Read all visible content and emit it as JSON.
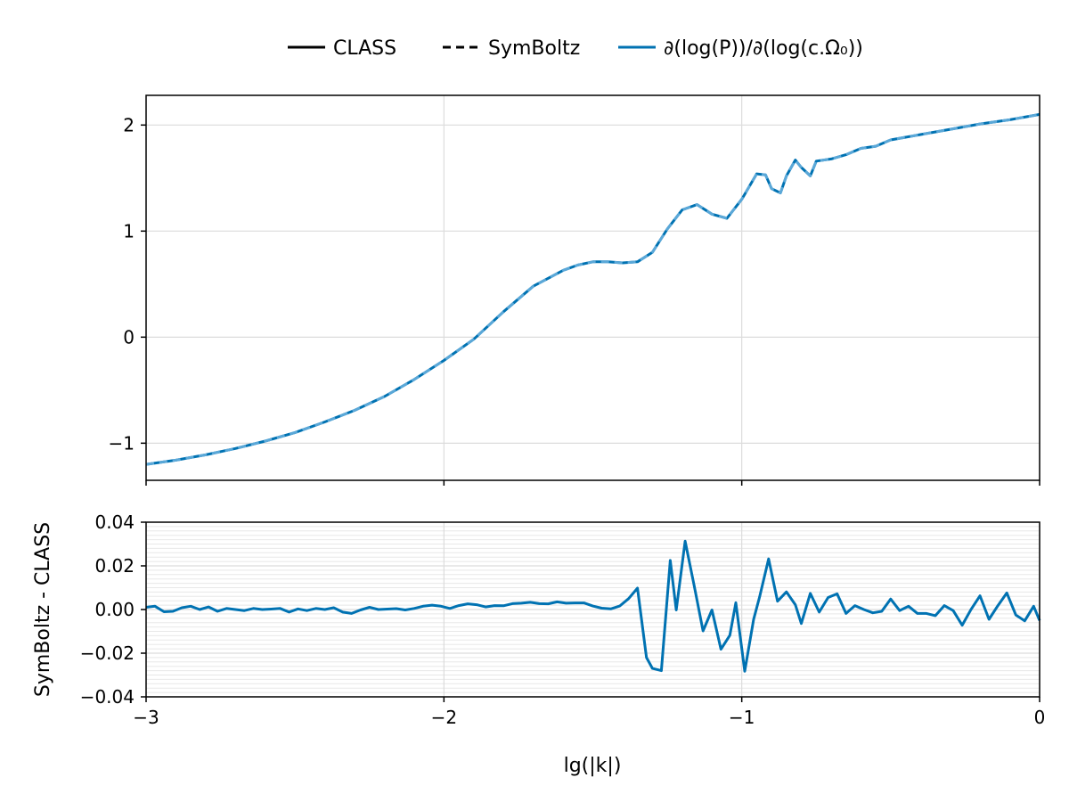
{
  "legend": {
    "items": [
      {
        "label": "CLASS",
        "style": "solid",
        "color": "#000000"
      },
      {
        "label": "SymBoltz",
        "style": "dashed",
        "color": "#000000"
      },
      {
        "label": "∂(log(P))/∂(log(c.Ω₀))",
        "style": "solid",
        "color": "#0072b2"
      }
    ],
    "placement": "top-center"
  },
  "chart_data": [
    {
      "type": "line",
      "xlabel": "",
      "ylabel": "",
      "xlim": [
        -3,
        0
      ],
      "ylim": [
        -1.35,
        2.28
      ],
      "xticks": [
        -3,
        -2,
        -1,
        0
      ],
      "yticks": [
        -1,
        0,
        1,
        2
      ],
      "ytick_labels": [
        "−1",
        "0",
        "1",
        "2"
      ],
      "grid": true,
      "series": [
        {
          "name": "∂(log(P))/∂(log(c.Ω₀))",
          "color": "#0072b2",
          "style": "solid + dashed overlay",
          "x": [
            -3.0,
            -2.9,
            -2.8,
            -2.7,
            -2.6,
            -2.5,
            -2.4,
            -2.3,
            -2.2,
            -2.1,
            -2.0,
            -1.9,
            -1.8,
            -1.7,
            -1.6,
            -1.55,
            -1.5,
            -1.45,
            -1.4,
            -1.35,
            -1.3,
            -1.25,
            -1.2,
            -1.15,
            -1.1,
            -1.05,
            -1.0,
            -0.95,
            -0.92,
            -0.9,
            -0.87,
            -0.85,
            -0.82,
            -0.8,
            -0.77,
            -0.75,
            -0.7,
            -0.65,
            -0.6,
            -0.55,
            -0.5,
            -0.4,
            -0.3,
            -0.2,
            -0.1,
            0.0
          ],
          "y": [
            -1.2,
            -1.16,
            -1.11,
            -1.05,
            -0.98,
            -0.9,
            -0.8,
            -0.69,
            -0.56,
            -0.4,
            -0.22,
            -0.02,
            0.24,
            0.48,
            0.63,
            0.68,
            0.71,
            0.71,
            0.7,
            0.71,
            0.8,
            1.02,
            1.2,
            1.25,
            1.16,
            1.12,
            1.3,
            1.54,
            1.53,
            1.4,
            1.36,
            1.52,
            1.67,
            1.6,
            1.52,
            1.66,
            1.68,
            1.72,
            1.78,
            1.8,
            1.86,
            1.91,
            1.96,
            2.01,
            2.05,
            2.1
          ]
        }
      ]
    },
    {
      "type": "line",
      "xlabel": "lg(|k|)",
      "ylabel": "SymBoltz - CLASS",
      "xlim": [
        -3,
        0
      ],
      "ylim": [
        -0.04,
        0.04
      ],
      "xticks": [
        -3,
        -2,
        -1,
        0
      ],
      "xtick_labels": [
        "−3",
        "−2",
        "−1",
        "0"
      ],
      "yticks": [
        -0.04,
        -0.02,
        0.0,
        0.02,
        0.04
      ],
      "ytick_labels": [
        "−0.04",
        "−0.02",
        "0.00",
        "0.02",
        "0.04"
      ],
      "grid": true,
      "series": [
        {
          "name": "∂(log(P))/∂(log(c.Ω₀))",
          "color": "#0072b2",
          "x": [
            -3.0,
            -2.97,
            -2.94,
            -2.91,
            -2.88,
            -2.85,
            -2.82,
            -2.79,
            -2.76,
            -2.73,
            -2.7,
            -2.67,
            -2.64,
            -2.61,
            -2.58,
            -2.55,
            -2.52,
            -2.49,
            -2.46,
            -2.43,
            -2.4,
            -2.37,
            -2.34,
            -2.31,
            -2.28,
            -2.25,
            -2.22,
            -2.19,
            -2.16,
            -2.13,
            -2.1,
            -2.07,
            -2.04,
            -2.01,
            -1.98,
            -1.95,
            -1.92,
            -1.89,
            -1.86,
            -1.83,
            -1.8,
            -1.77,
            -1.74,
            -1.71,
            -1.68,
            -1.65,
            -1.62,
            -1.59,
            -1.56,
            -1.53,
            -1.5,
            -1.47,
            -1.44,
            -1.41,
            -1.38,
            -1.35,
            -1.32,
            -1.3,
            -1.27,
            -1.24,
            -1.22,
            -1.19,
            -1.16,
            -1.13,
            -1.1,
            -1.07,
            -1.04,
            -1.02,
            -0.99,
            -0.96,
            -0.94,
            -0.91,
            -0.88,
            -0.85,
            -0.82,
            -0.8,
            -0.77,
            -0.74,
            -0.71,
            -0.68,
            -0.65,
            -0.62,
            -0.59,
            -0.56,
            -0.53,
            -0.5,
            -0.47,
            -0.44,
            -0.41,
            -0.38,
            -0.35,
            -0.32,
            -0.29,
            -0.26,
            -0.23,
            -0.2,
            -0.17,
            -0.14,
            -0.11,
            -0.08,
            -0.05,
            -0.02,
            0.0
          ],
          "y": [
            0.001,
            0.0015,
            -0.001,
            -0.0008,
            0.0008,
            0.0015,
            0.0,
            0.0012,
            -0.0008,
            0.0005,
            0.0,
            -0.0005,
            0.0005,
            0.0,
            0.0002,
            0.0005,
            -0.0012,
            0.0003,
            -0.0005,
            0.0005,
            0.0,
            0.0008,
            -0.0012,
            -0.0018,
            -0.0002,
            0.001,
            0.0,
            0.0002,
            0.0004,
            -0.0002,
            0.0005,
            0.0015,
            0.002,
            0.0015,
            0.0005,
            0.0018,
            0.0026,
            0.0022,
            0.0012,
            0.0018,
            0.0017,
            0.0027,
            0.0029,
            0.0033,
            0.0027,
            0.0026,
            0.0035,
            0.0029,
            0.003,
            0.003,
            0.0016,
            0.0006,
            0.0003,
            0.0016,
            0.005,
            0.0098,
            -0.022,
            -0.027,
            -0.028,
            0.0225,
            -0.0002,
            0.0313,
            0.011,
            -0.0098,
            -0.0002,
            -0.0182,
            -0.0118,
            0.0031,
            -0.0283,
            -0.0045,
            0.0058,
            0.0232,
            0.0038,
            0.0081,
            0.0022,
            -0.0064,
            0.0074,
            -0.0012,
            0.0055,
            0.0072,
            -0.0018,
            0.0018,
            0.0,
            -0.0015,
            -0.0008,
            0.0048,
            -0.0005,
            0.0015,
            -0.0018,
            -0.0018,
            -0.0028,
            0.0018,
            -0.0005,
            -0.0072,
            0.0001,
            0.0063,
            -0.0045,
            0.0018,
            0.0076,
            -0.0025,
            -0.0052,
            0.0015,
            -0.005
          ]
        }
      ]
    }
  ]
}
